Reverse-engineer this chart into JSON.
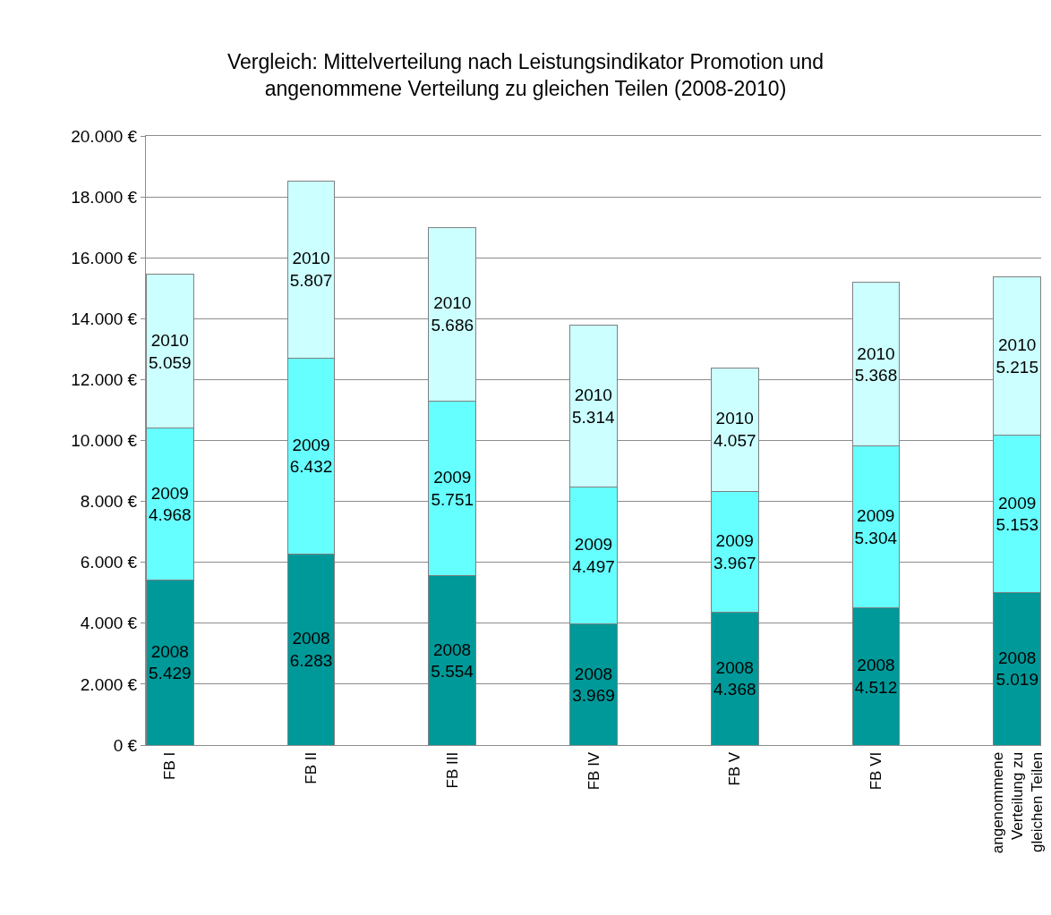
{
  "chart_data": {
    "type": "bar",
    "stacked": true,
    "title": "Vergleich: Mittelverteilung nach Leistungsindikator Promotion und angenommene Verteilung zu gleichen Teilen (2008-2010)",
    "categories": [
      "FB I",
      "FB II",
      "FB III",
      "FB IV",
      "FB V",
      "FB VI",
      "angenommene Verteilung zu gleichen Teilen"
    ],
    "series": [
      {
        "name": "2008",
        "color": "#009999",
        "values": [
          5429,
          6283,
          5554,
          3969,
          4368,
          4512,
          5019
        ],
        "value_labels": [
          "5.429",
          "6.283",
          "5.554",
          "3.969",
          "4.368",
          "4.512",
          "5.019"
        ]
      },
      {
        "name": "2009",
        "color": "#66ffff",
        "values": [
          4968,
          6432,
          5751,
          4497,
          3967,
          5304,
          5153
        ],
        "value_labels": [
          "4.968",
          "6.432",
          "5.751",
          "4.497",
          "3.967",
          "5.304",
          "5.153"
        ]
      },
      {
        "name": "2010",
        "color": "#ccffff",
        "values": [
          5059,
          5807,
          5686,
          5314,
          4057,
          5368,
          5215
        ],
        "value_labels": [
          "5.059",
          "5.807",
          "5.686",
          "5.314",
          "4.057",
          "5.368",
          "5.215"
        ]
      }
    ],
    "ylim": [
      0,
      20000
    ],
    "yticks": [
      {
        "value": 0,
        "label": "0 €"
      },
      {
        "value": 2000,
        "label": "2.000 €"
      },
      {
        "value": 4000,
        "label": "4.000 €"
      },
      {
        "value": 6000,
        "label": "6.000 €"
      },
      {
        "value": 8000,
        "label": "8.000 €"
      },
      {
        "value": 10000,
        "label": "10.000 €"
      },
      {
        "value": 12000,
        "label": "12.000 €"
      },
      {
        "value": 14000,
        "label": "14.000 €"
      },
      {
        "value": 16000,
        "label": "16.000 €"
      },
      {
        "value": 18000,
        "label": "18.000 €"
      },
      {
        "value": 20000,
        "label": "20.000 €"
      }
    ],
    "grid": "y"
  }
}
